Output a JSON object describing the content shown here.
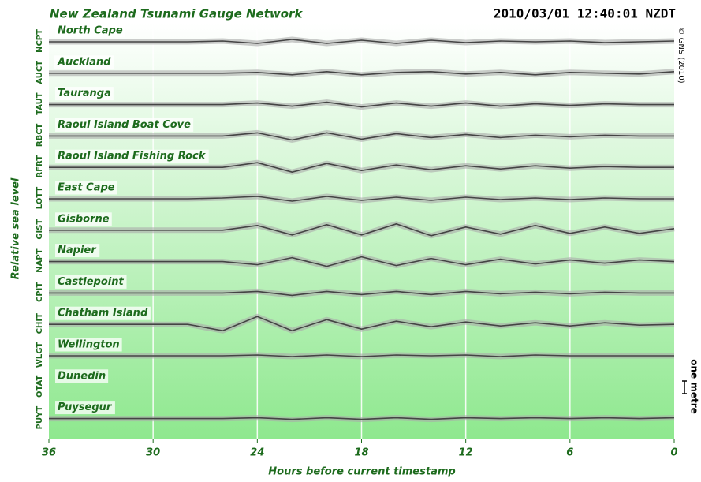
{
  "chart_data": {
    "type": "line",
    "title": "New Zealand Tsunami Gauge Network",
    "timestamp": "2010/03/01 12:40:01 NZDT",
    "credit": "© GNS (2010)",
    "y_label": "Relative sea level",
    "x_label": "Hours before current timestamp",
    "scale_label": "one metre",
    "x": [
      36,
      34,
      32,
      30,
      28,
      26,
      24,
      22,
      20,
      18,
      16,
      14,
      12,
      10,
      8,
      6,
      4,
      2,
      0
    ],
    "xlim": [
      36,
      0
    ],
    "xticks": [
      36,
      30,
      24,
      18,
      12,
      6,
      0
    ],
    "grid": true,
    "color": "#444444",
    "series": [
      {
        "name": "North Cape",
        "code": "NCPT",
        "values": [
          0,
          0,
          0,
          0,
          0,
          0.05,
          -0.1,
          0.15,
          -0.1,
          0.1,
          -0.1,
          0.1,
          -0.05,
          0.05,
          0,
          0.05,
          -0.05,
          0,
          0.05
        ]
      },
      {
        "name": "Auckland",
        "code": "AUCT",
        "values": [
          0,
          0,
          0,
          0,
          0,
          0,
          0.05,
          -0.1,
          0.1,
          -0.1,
          0.05,
          0.1,
          -0.05,
          0.05,
          -0.1,
          0.05,
          0,
          -0.05,
          0.1
        ]
      },
      {
        "name": "Tauranga",
        "code": "TAUT",
        "values": [
          0,
          0,
          0,
          0,
          0,
          0,
          0.1,
          -0.1,
          0.15,
          -0.15,
          0.1,
          -0.1,
          0.1,
          -0.1,
          0.05,
          -0.05,
          0.05,
          0,
          0
        ]
      },
      {
        "name": "Raoul Island Boat Cove",
        "code": "RBCT",
        "values": [
          0,
          0,
          0,
          0,
          0,
          0,
          0.2,
          -0.25,
          0.2,
          -0.2,
          0.15,
          -0.1,
          0.1,
          -0.1,
          0.05,
          -0.05,
          0.05,
          0,
          0
        ]
      },
      {
        "name": "Raoul Island Fishing Rock",
        "code": "RFRT",
        "values": [
          0,
          0,
          0,
          0,
          0,
          0,
          0.3,
          -0.3,
          0.25,
          -0.2,
          0.15,
          -0.15,
          0.1,
          -0.1,
          0.1,
          -0.05,
          0.05,
          0,
          0
        ]
      },
      {
        "name": "East Cape",
        "code": "LOTT",
        "values": [
          0,
          0,
          0,
          0,
          0,
          0.05,
          0.15,
          -0.15,
          0.15,
          -0.1,
          0.1,
          -0.1,
          0.1,
          -0.05,
          0.05,
          -0.05,
          0.05,
          0,
          0
        ]
      },
      {
        "name": "Gisborne",
        "code": "GIST",
        "values": [
          0,
          0,
          0,
          0,
          0,
          0,
          0.3,
          -0.3,
          0.35,
          -0.3,
          0.4,
          -0.35,
          0.2,
          -0.25,
          0.3,
          -0.2,
          0.2,
          -0.2,
          0.1
        ]
      },
      {
        "name": "Napier",
        "code": "NAPT",
        "values": [
          0,
          0,
          0,
          0,
          0,
          0,
          -0.2,
          0.25,
          -0.3,
          0.3,
          -0.25,
          0.2,
          -0.2,
          0.15,
          -0.15,
          0.1,
          -0.1,
          0.1,
          0
        ]
      },
      {
        "name": "Castlepoint",
        "code": "CPIT",
        "values": [
          0,
          0,
          0,
          0,
          0,
          0,
          0.1,
          -0.15,
          0.1,
          -0.1,
          0.1,
          -0.1,
          0.1,
          -0.05,
          0.05,
          -0.05,
          0.05,
          0,
          0
        ]
      },
      {
        "name": "Chatham Island",
        "code": "CHIT",
        "values": [
          0,
          0,
          0,
          0,
          0,
          -0.4,
          0.5,
          -0.4,
          0.3,
          -0.3,
          0.2,
          -0.15,
          0.15,
          -0.1,
          0.1,
          -0.1,
          0.1,
          -0.05,
          0
        ]
      },
      {
        "name": "Wellington",
        "code": "WLGT",
        "values": [
          0,
          0,
          0,
          0,
          0,
          0,
          0.05,
          -0.05,
          0.05,
          -0.05,
          0.05,
          0,
          0.05,
          -0.05,
          0.05,
          0,
          0,
          0,
          0
        ]
      },
      {
        "name": "Dunedin",
        "code": "OTAT",
        "values": [
          null,
          null,
          null,
          null,
          null,
          null,
          null,
          null,
          null,
          null,
          null,
          null,
          null,
          null,
          null,
          null,
          null,
          null,
          null
        ]
      },
      {
        "name": "Puysegur",
        "code": "PUYT",
        "values": [
          0,
          0,
          0,
          0,
          0,
          0,
          0.05,
          -0.05,
          0.05,
          -0.05,
          0.05,
          -0.05,
          0.05,
          0,
          0.05,
          0,
          0.05,
          0,
          0.05
        ]
      }
    ]
  }
}
